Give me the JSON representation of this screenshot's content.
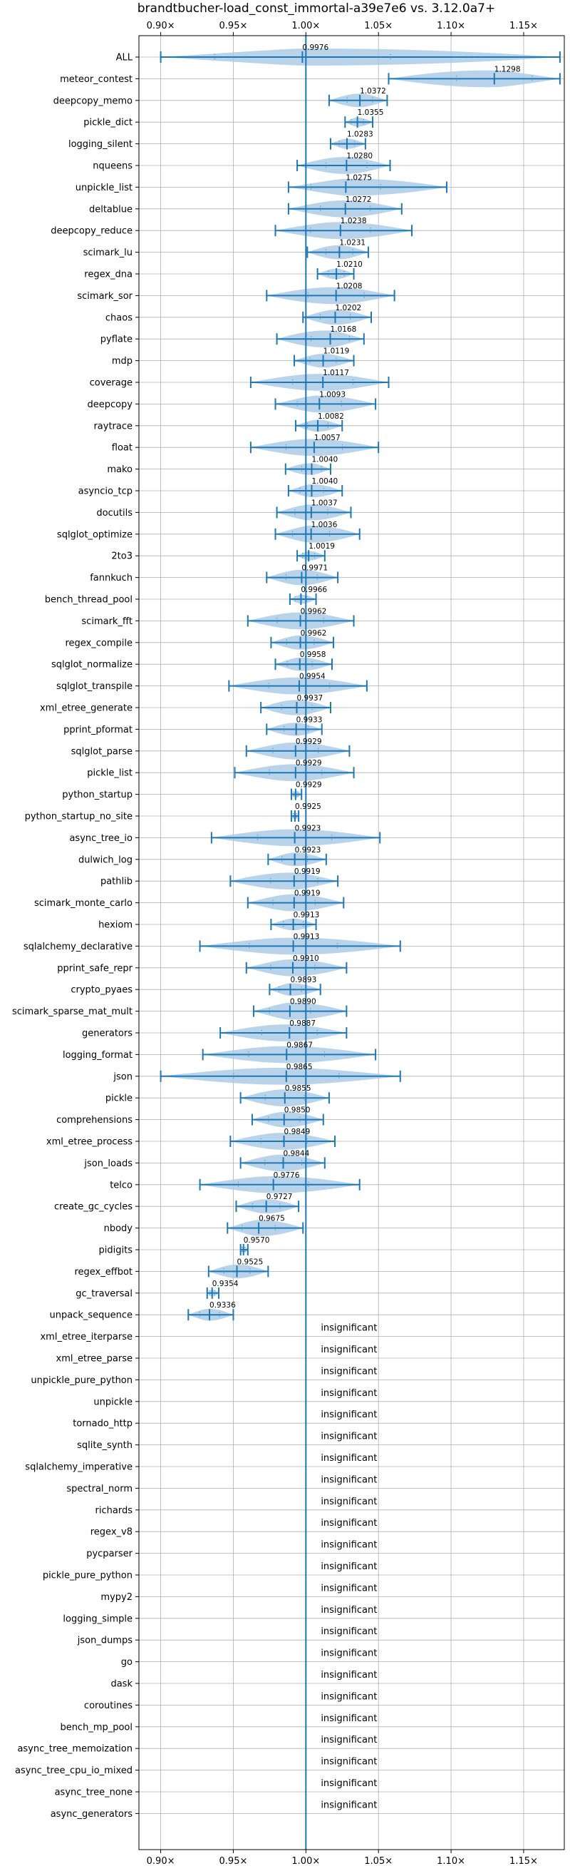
{
  "chart_data": {
    "type": "violin",
    "title": "brandtbucher-load_const_immortal-a39e7e6 vs. 3.12.0a7+",
    "xlim": [
      0.885,
      1.178
    ],
    "x_ticks": [
      0.9,
      0.95,
      1.0,
      1.05,
      1.1,
      1.15
    ],
    "x_tick_labels": [
      "0.90×",
      "0.95×",
      "1.00×",
      "1.05×",
      "1.10×",
      "1.15×"
    ],
    "reference_line": 1.0,
    "grid": true,
    "insignificant_label": "insignificant",
    "benchmarks": [
      {
        "name": "ALL",
        "mean": 0.9976,
        "label": "0.9976",
        "min": 0.9,
        "max": 1.175
      },
      {
        "name": "meteor_contest",
        "mean": 1.1298,
        "label": "1.1298",
        "min": 1.057,
        "max": 1.175
      },
      {
        "name": "deepcopy_memo",
        "mean": 1.0372,
        "label": "1.0372",
        "min": 1.016,
        "max": 1.056
      },
      {
        "name": "pickle_dict",
        "mean": 1.0355,
        "label": "1.0355",
        "min": 1.027,
        "max": 1.046
      },
      {
        "name": "logging_silent",
        "mean": 1.0283,
        "label": "1.0283",
        "min": 1.017,
        "max": 1.041
      },
      {
        "name": "nqueens",
        "mean": 1.028,
        "label": "1.0280",
        "min": 0.994,
        "max": 1.058
      },
      {
        "name": "unpickle_list",
        "mean": 1.0275,
        "label": "1.0275",
        "min": 0.988,
        "max": 1.097
      },
      {
        "name": "deltablue",
        "mean": 1.0272,
        "label": "1.0272",
        "min": 0.988,
        "max": 1.066
      },
      {
        "name": "deepcopy_reduce",
        "mean": 1.0238,
        "label": "1.0238",
        "min": 0.979,
        "max": 1.073
      },
      {
        "name": "scimark_lu",
        "mean": 1.0231,
        "label": "1.0231",
        "min": 1.001,
        "max": 1.043
      },
      {
        "name": "regex_dna",
        "mean": 1.021,
        "label": "1.0210",
        "min": 1.008,
        "max": 1.033
      },
      {
        "name": "scimark_sor",
        "mean": 1.0208,
        "label": "1.0208",
        "min": 0.973,
        "max": 1.061
      },
      {
        "name": "chaos",
        "mean": 1.0202,
        "label": "1.0202",
        "min": 0.998,
        "max": 1.045
      },
      {
        "name": "pyflate",
        "mean": 1.0168,
        "label": "1.0168",
        "min": 0.98,
        "max": 1.04
      },
      {
        "name": "mdp",
        "mean": 1.0119,
        "label": "1.0119",
        "min": 0.992,
        "max": 1.033
      },
      {
        "name": "coverage",
        "mean": 1.0117,
        "label": "1.0117",
        "min": 0.962,
        "max": 1.057
      },
      {
        "name": "deepcopy",
        "mean": 1.0093,
        "label": "1.0093",
        "min": 0.979,
        "max": 1.048
      },
      {
        "name": "raytrace",
        "mean": 1.0082,
        "label": "1.0082",
        "min": 0.993,
        "max": 1.025
      },
      {
        "name": "float",
        "mean": 1.0057,
        "label": "1.0057",
        "min": 0.962,
        "max": 1.05
      },
      {
        "name": "mako",
        "mean": 1.004,
        "label": "1.0040",
        "min": 0.986,
        "max": 1.017
      },
      {
        "name": "asyncio_tcp",
        "mean": 1.004,
        "label": "1.0040",
        "min": 0.988,
        "max": 1.025
      },
      {
        "name": "docutils",
        "mean": 1.0037,
        "label": "1.0037",
        "min": 0.98,
        "max": 1.031
      },
      {
        "name": "sqlglot_optimize",
        "mean": 1.0036,
        "label": "1.0036",
        "min": 0.979,
        "max": 1.037
      },
      {
        "name": "2to3",
        "mean": 1.0019,
        "label": "1.0019",
        "min": 0.994,
        "max": 1.013
      },
      {
        "name": "fannkuch",
        "mean": 0.9971,
        "label": "0.9971",
        "min": 0.973,
        "max": 1.022
      },
      {
        "name": "bench_thread_pool",
        "mean": 0.9966,
        "label": "0.9966",
        "min": 0.989,
        "max": 1.007
      },
      {
        "name": "scimark_fft",
        "mean": 0.9962,
        "label": "0.9962",
        "min": 0.96,
        "max": 1.033
      },
      {
        "name": "regex_compile",
        "mean": 0.9962,
        "label": "0.9962",
        "min": 0.976,
        "max": 1.019
      },
      {
        "name": "sqlglot_normalize",
        "mean": 0.9958,
        "label": "0.9958",
        "min": 0.979,
        "max": 1.018
      },
      {
        "name": "sqlglot_transpile",
        "mean": 0.9954,
        "label": "0.9954",
        "min": 0.947,
        "max": 1.042
      },
      {
        "name": "xml_etree_generate",
        "mean": 0.9937,
        "label": "0.9937",
        "min": 0.969,
        "max": 1.017
      },
      {
        "name": "pprint_pformat",
        "mean": 0.9933,
        "label": "0.9933",
        "min": 0.973,
        "max": 1.011
      },
      {
        "name": "sqlglot_parse",
        "mean": 0.9929,
        "label": "0.9929",
        "min": 0.959,
        "max": 1.03
      },
      {
        "name": "pickle_list",
        "mean": 0.9929,
        "label": "0.9929",
        "min": 0.951,
        "max": 1.033
      },
      {
        "name": "python_startup",
        "mean": 0.9929,
        "label": "0.9929",
        "min": 0.99,
        "max": 0.997
      },
      {
        "name": "python_startup_no_site",
        "mean": 0.9925,
        "label": "0.9925",
        "min": 0.99,
        "max": 0.995
      },
      {
        "name": "async_tree_io",
        "mean": 0.9923,
        "label": "0.9923",
        "min": 0.935,
        "max": 1.051
      },
      {
        "name": "dulwich_log",
        "mean": 0.9923,
        "label": "0.9923",
        "min": 0.974,
        "max": 1.014
      },
      {
        "name": "pathlib",
        "mean": 0.9919,
        "label": "0.9919",
        "min": 0.948,
        "max": 1.022
      },
      {
        "name": "scimark_monte_carlo",
        "mean": 0.9919,
        "label": "0.9919",
        "min": 0.96,
        "max": 1.026
      },
      {
        "name": "hexiom",
        "mean": 0.9913,
        "label": "0.9913",
        "min": 0.976,
        "max": 1.007
      },
      {
        "name": "sqlalchemy_declarative",
        "mean": 0.9913,
        "label": "0.9913",
        "min": 0.927,
        "max": 1.065
      },
      {
        "name": "pprint_safe_repr",
        "mean": 0.991,
        "label": "0.9910",
        "min": 0.959,
        "max": 1.028
      },
      {
        "name": "crypto_pyaes",
        "mean": 0.9893,
        "label": "0.9893",
        "min": 0.975,
        "max": 1.01
      },
      {
        "name": "scimark_sparse_mat_mult",
        "mean": 0.989,
        "label": "0.9890",
        "min": 0.964,
        "max": 1.028
      },
      {
        "name": "generators",
        "mean": 0.9887,
        "label": "0.9887",
        "min": 0.941,
        "max": 1.028
      },
      {
        "name": "logging_format",
        "mean": 0.9867,
        "label": "0.9867",
        "min": 0.929,
        "max": 1.048
      },
      {
        "name": "json",
        "mean": 0.9865,
        "label": "0.9865",
        "min": 0.9,
        "max": 1.065
      },
      {
        "name": "pickle",
        "mean": 0.9855,
        "label": "0.9855",
        "min": 0.955,
        "max": 1.016
      },
      {
        "name": "comprehensions",
        "mean": 0.985,
        "label": "0.9850",
        "min": 0.963,
        "max": 1.012
      },
      {
        "name": "xml_etree_process",
        "mean": 0.9849,
        "label": "0.9849",
        "min": 0.948,
        "max": 1.02
      },
      {
        "name": "json_loads",
        "mean": 0.9844,
        "label": "0.9844",
        "min": 0.955,
        "max": 1.013
      },
      {
        "name": "telco",
        "mean": 0.9776,
        "label": "0.9776",
        "min": 0.927,
        "max": 1.037
      },
      {
        "name": "create_gc_cycles",
        "mean": 0.9727,
        "label": "0.9727",
        "min": 0.952,
        "max": 0.995
      },
      {
        "name": "nbody",
        "mean": 0.9675,
        "label": "0.9675",
        "min": 0.946,
        "max": 0.998
      },
      {
        "name": "pidigits",
        "mean": 0.957,
        "label": "0.9570",
        "min": 0.955,
        "max": 0.96
      },
      {
        "name": "regex_effbot",
        "mean": 0.9525,
        "label": "0.9525",
        "min": 0.933,
        "max": 0.974
      },
      {
        "name": "gc_traversal",
        "mean": 0.9354,
        "label": "0.9354",
        "min": 0.932,
        "max": 0.94
      },
      {
        "name": "unpack_sequence",
        "mean": 0.9336,
        "label": "0.9336",
        "min": 0.919,
        "max": 0.95
      },
      {
        "name": "xml_etree_iterparse",
        "insignificant": true
      },
      {
        "name": "xml_etree_parse",
        "insignificant": true
      },
      {
        "name": "unpickle_pure_python",
        "insignificant": true
      },
      {
        "name": "unpickle",
        "insignificant": true
      },
      {
        "name": "tornado_http",
        "insignificant": true
      },
      {
        "name": "sqlite_synth",
        "insignificant": true
      },
      {
        "name": "sqlalchemy_imperative",
        "insignificant": true
      },
      {
        "name": "spectral_norm",
        "insignificant": true
      },
      {
        "name": "richards",
        "insignificant": true
      },
      {
        "name": "regex_v8",
        "insignificant": true
      },
      {
        "name": "pycparser",
        "insignificant": true
      },
      {
        "name": "pickle_pure_python",
        "insignificant": true
      },
      {
        "name": "mypy2",
        "insignificant": true
      },
      {
        "name": "logging_simple",
        "insignificant": true
      },
      {
        "name": "json_dumps",
        "insignificant": true
      },
      {
        "name": "go",
        "insignificant": true
      },
      {
        "name": "dask",
        "insignificant": true
      },
      {
        "name": "coroutines",
        "insignificant": true
      },
      {
        "name": "bench_mp_pool",
        "insignificant": true
      },
      {
        "name": "async_tree_memoization",
        "insignificant": true
      },
      {
        "name": "async_tree_cpu_io_mixed",
        "insignificant": true
      },
      {
        "name": "async_tree_none",
        "insignificant": true
      },
      {
        "name": "async_generators",
        "insignificant": true
      }
    ],
    "colors": {
      "line": "#1f77b4",
      "violin": "#a8c8e6",
      "grid": "#b0b0b0",
      "axes": "#000000"
    }
  }
}
